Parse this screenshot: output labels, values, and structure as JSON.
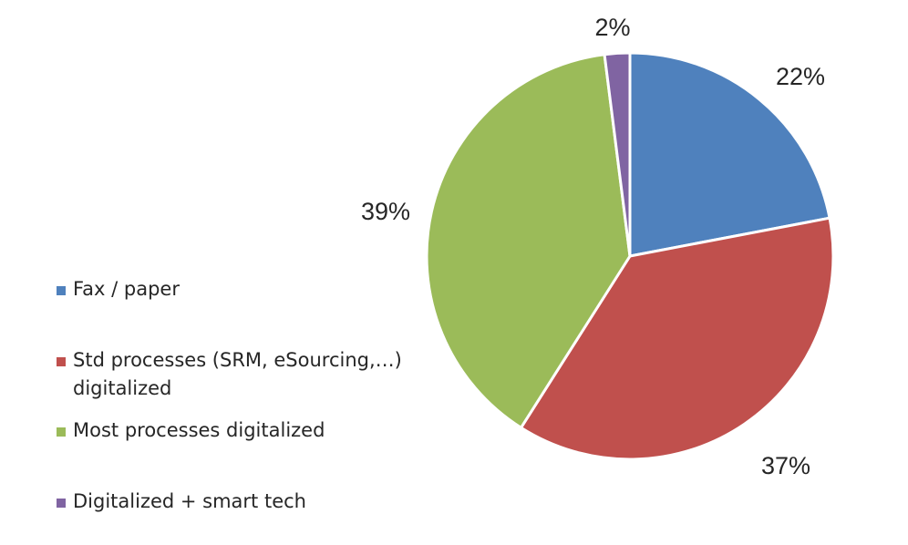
{
  "chart_data": {
    "type": "pie",
    "categories": [
      "Fax / paper",
      "Std processes (SRM, eSourcing,…) digitalized",
      "Most processes digitalized",
      "Digitalized + smart tech"
    ],
    "values": [
      22,
      37,
      39,
      2
    ],
    "data_labels": [
      "22%",
      "37%",
      "39%",
      "2%"
    ],
    "colors": [
      "#4F81BD",
      "#C0504D",
      "#9BBB59",
      "#8064A2"
    ],
    "legend_position": "left",
    "start_angle": "12 o'clock",
    "direction": "clockwise"
  }
}
